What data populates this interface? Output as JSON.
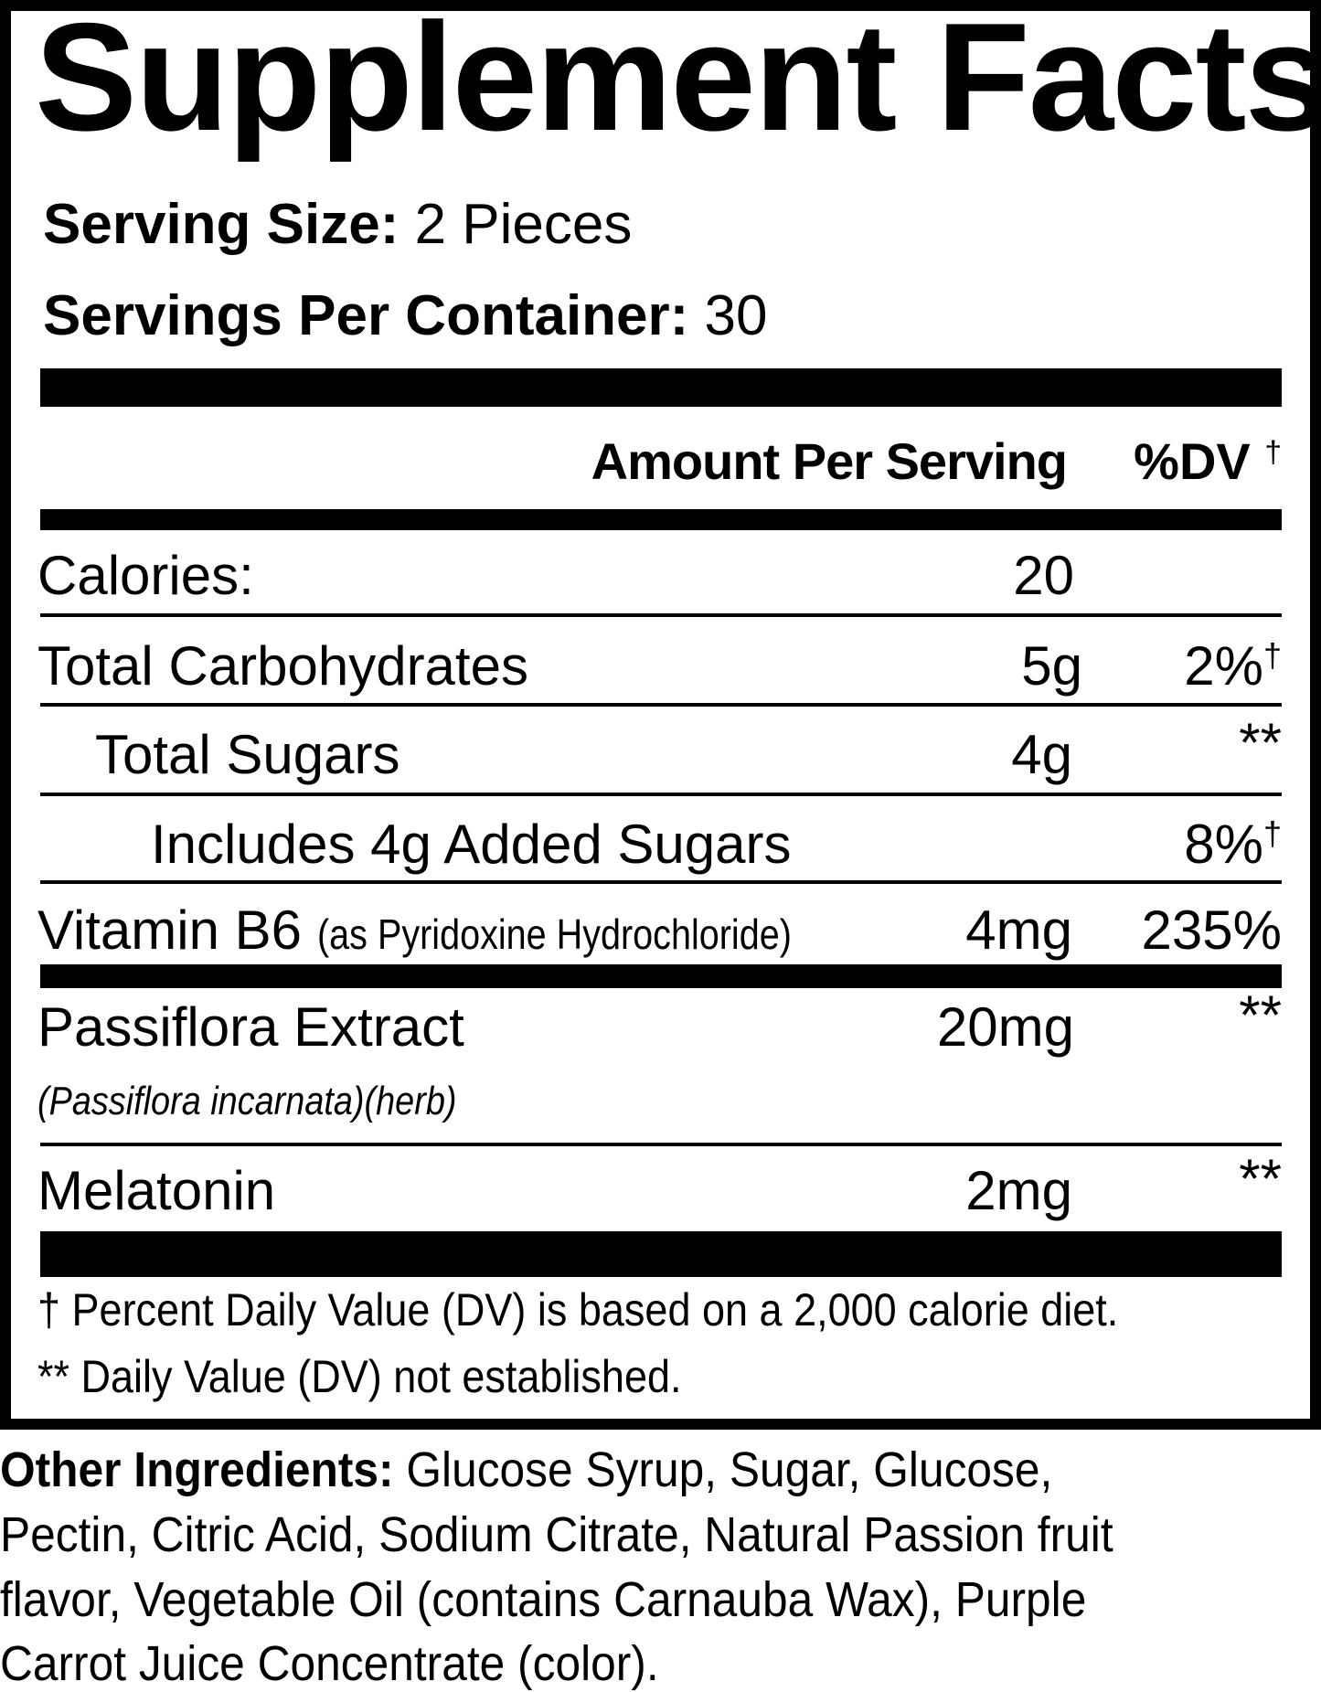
{
  "title": "Supplement Facts",
  "serving_size": {
    "label": "Serving Size:",
    "value": "2 Pieces"
  },
  "servings_per_container": {
    "label": "Servings Per Container:",
    "value": "30"
  },
  "header": {
    "amount": "Amount Per Serving",
    "dv": "%DV",
    "dv_mark": "†"
  },
  "rows": [
    {
      "name": "Calories:",
      "amount": "20",
      "dv": "",
      "dv_mark": ""
    },
    {
      "name": "Total Carbohydrates",
      "amount": "5g",
      "dv": "2%",
      "dv_mark": "†"
    },
    {
      "name": "Total Sugars",
      "amount": "4g",
      "dv": "**",
      "dv_mark": ""
    },
    {
      "name": "Includes 4g Added Sugars",
      "amount": "",
      "dv": "8%",
      "dv_mark": "†"
    },
    {
      "name": "Vitamin B6",
      "detail": "(as Pyridoxine Hydrochloride)",
      "amount": "4mg",
      "dv": "235%",
      "dv_mark": ""
    },
    {
      "name": "Passiflora Extract",
      "detail": "(Passiflora incarnata)(herb)",
      "amount": "20mg",
      "dv": "**",
      "dv_mark": ""
    },
    {
      "name": "Melatonin",
      "amount": "2mg",
      "dv": "**",
      "dv_mark": ""
    }
  ],
  "footnotes": [
    "† Percent Daily Value (DV) is based on a 2,000 calorie diet.",
    "** Daily Value (DV) not established."
  ],
  "other_ingredients": {
    "label": "Other Ingredients:",
    "lines": [
      " Glucose Syrup, Sugar, Glucose,",
      "Pectin, Citric Acid, Sodium Citrate, Natural Passion fruit",
      "flavor, Vegetable Oil (contains Carnauba Wax), Purple",
      "Carrot Juice Concentrate (color)."
    ]
  }
}
